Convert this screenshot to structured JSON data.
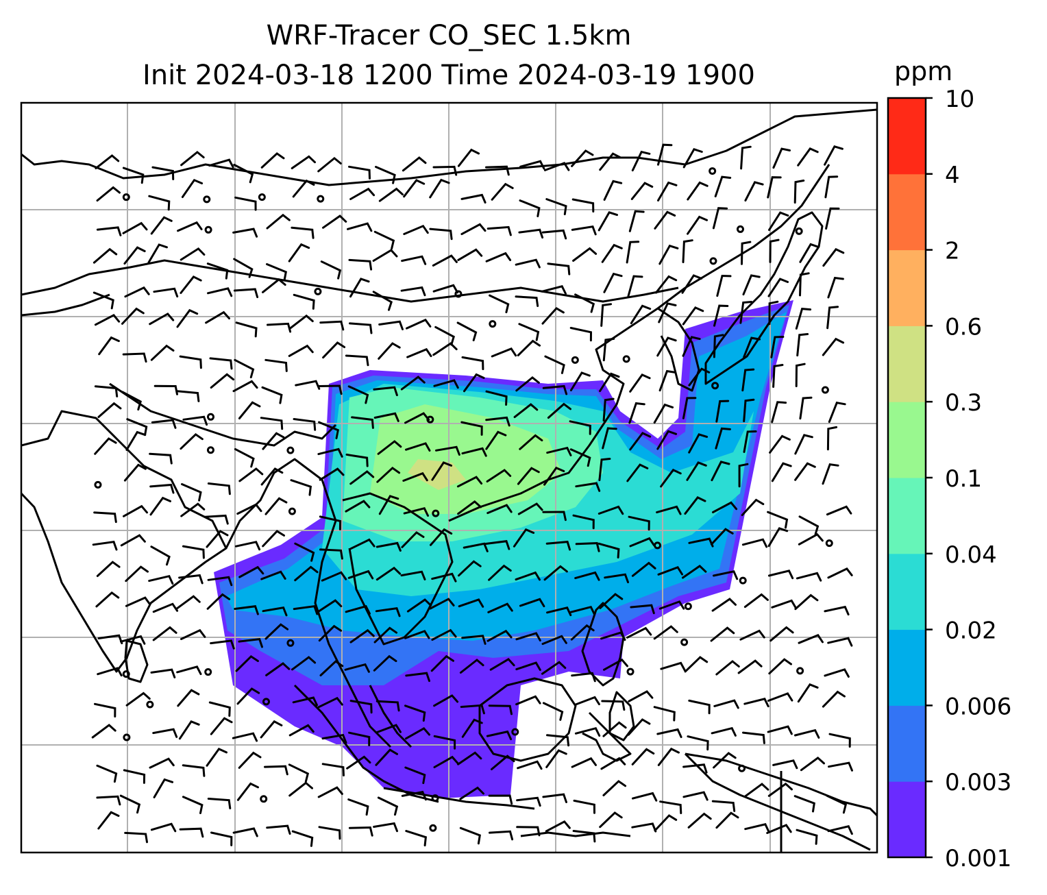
{
  "title_line1": "WRF-Tracer CO_SEC 1.5km",
  "title_line2": "Init 2024-03-18 1200 Time 2024-03-19 1900",
  "colorbar": {
    "unit": "ppm",
    "ticks": [
      "0.001",
      "0.003",
      "0.006",
      "0.02",
      "0.04",
      "0.1",
      "0.3",
      "0.6",
      "2",
      "4",
      "10"
    ],
    "colors": [
      "#6a2bff",
      "#3374f5",
      "#00aeea",
      "#2bdcd4",
      "#66f5b8",
      "#99f88f",
      "#cfe183",
      "#ffb05f",
      "#ff7239",
      "#ff2a17"
    ]
  },
  "map": {
    "gridlines": true,
    "tracer_field": "CO_SEC",
    "wind_barbs": true
  }
}
